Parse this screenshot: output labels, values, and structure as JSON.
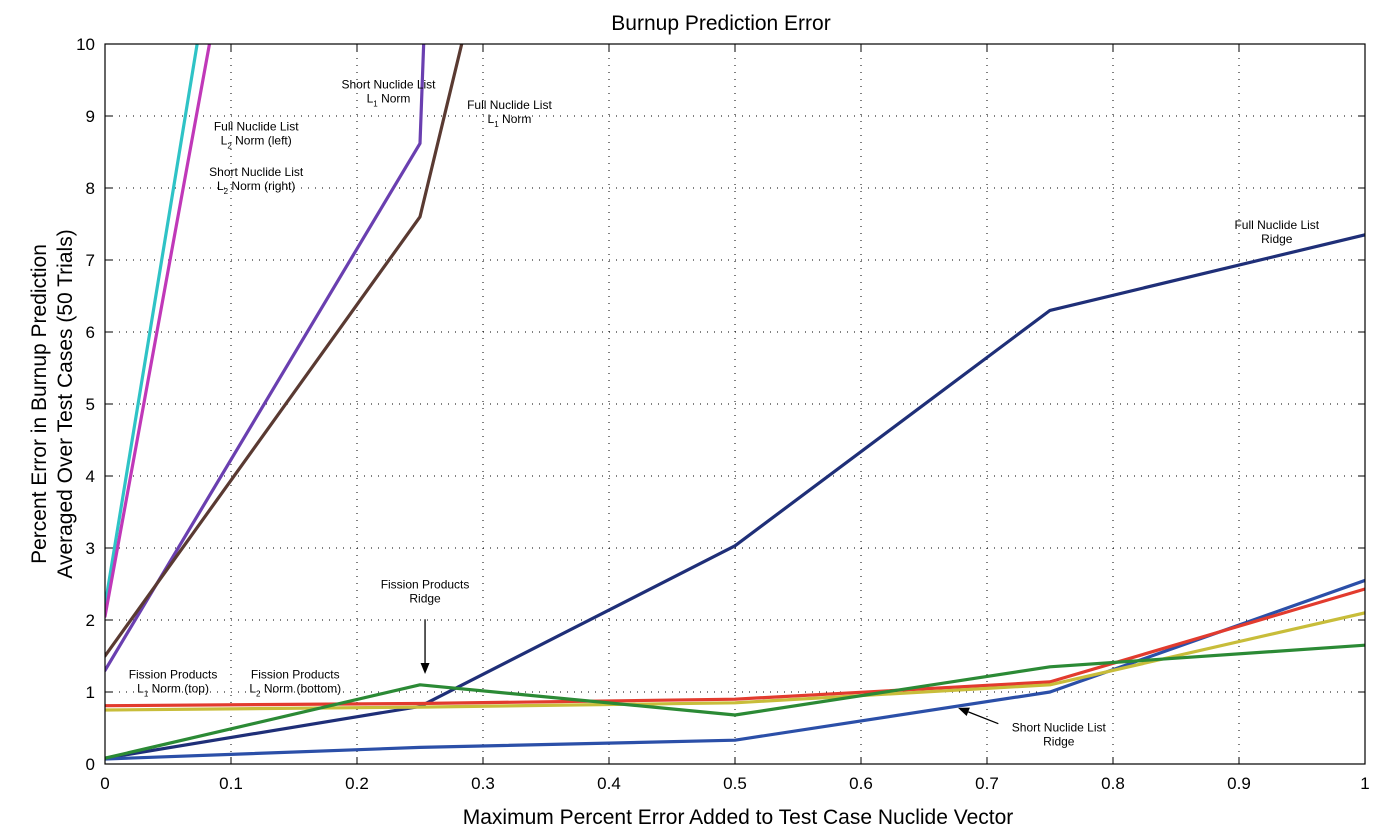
{
  "chart_data": {
    "type": "line",
    "title": "Burnup Prediction Error",
    "xlabel": "Maximum Percent Error Added to Test Case Nuclide Vector",
    "ylabel_lines": [
      "Percent Error in Burnup Prediction",
      "Averaged Over Test Cases (50 Trials)"
    ],
    "xlim": [
      0,
      1
    ],
    "ylim": [
      0,
      10
    ],
    "x_ticks": [
      0,
      0.1,
      0.2,
      0.3,
      0.4,
      0.5,
      0.6,
      0.7,
      0.8,
      0.9,
      1
    ],
    "x_tick_labels": [
      "0",
      "0.1",
      "0.2",
      "0.3",
      "0.4",
      "0.5",
      "0.6",
      "0.7",
      "0.8",
      "0.9",
      "1"
    ],
    "y_ticks": [
      0,
      1,
      2,
      3,
      4,
      5,
      6,
      7,
      8,
      9,
      10
    ],
    "y_tick_labels": [
      "0",
      "1",
      "2",
      "3",
      "4",
      "5",
      "6",
      "7",
      "8",
      "9",
      "10"
    ],
    "grid": true,
    "series": [
      {
        "color": "#2fc3c6",
        "x": [
          0,
          0.075
        ],
        "y": [
          2.2,
          10.2
        ]
      },
      {
        "color": "#c038b8",
        "x": [
          0,
          0.085
        ],
        "y": [
          2.05,
          10.2
        ]
      },
      {
        "color": "#6a3fb0",
        "x": [
          0,
          0.25,
          0.254
        ],
        "y": [
          1.3,
          8.62,
          10.5
        ]
      },
      {
        "color": "#5a3a32",
        "x": [
          0,
          0.25,
          0.29
        ],
        "y": [
          1.5,
          7.6,
          10.5
        ]
      },
      {
        "color": "#1f2f78",
        "x": [
          0,
          0.25,
          0.5,
          0.75,
          1
        ],
        "y": [
          0.08,
          0.8,
          3.03,
          6.3,
          7.35
        ]
      },
      {
        "color": "#2b4fa8",
        "x": [
          0,
          0.25,
          0.5,
          0.75,
          1
        ],
        "y": [
          0.07,
          0.23,
          0.33,
          1.0,
          2.55
        ]
      },
      {
        "color": "#e23b2e",
        "x": [
          0,
          0.25,
          0.5,
          0.75,
          1
        ],
        "y": [
          0.81,
          0.84,
          0.9,
          1.14,
          2.43
        ]
      },
      {
        "color": "#c8bd3a",
        "x": [
          0,
          0.25,
          0.5,
          0.75,
          1
        ],
        "y": [
          0.75,
          0.79,
          0.85,
          1.1,
          2.1
        ]
      },
      {
        "color": "#2b8a35",
        "x": [
          0,
          0.25,
          0.5,
          0.75,
          1
        ],
        "y": [
          0.08,
          1.1,
          0.68,
          1.35,
          1.65
        ]
      }
    ],
    "annotations": [
      {
        "lines": [
          "Short Nuclide List",
          "L1 Norm"
        ],
        "x": 0.225,
        "y": 9.38
      },
      {
        "lines": [
          "Full Nuclide List",
          "L1 Norm"
        ],
        "x": 0.321,
        "y": 9.1
      },
      {
        "lines": [
          "Full Nuclide List",
          "L2 Norm (left)"
        ],
        "x": 0.12,
        "y": 8.8
      },
      {
        "lines": [
          "Short Nuclide List",
          "L2 Norm (right)"
        ],
        "x": 0.12,
        "y": 8.17
      },
      {
        "lines": [
          "Full Nuclide List",
          "Ridge"
        ],
        "x": 0.93,
        "y": 7.43
      },
      {
        "lines": [
          "Fission Products",
          "Ridge"
        ],
        "x": 0.254,
        "y": 2.44
      },
      {
        "lines": [
          "Fission Products",
          "L1 Norm (top)"
        ],
        "x": 0.054,
        "y": 1.19
      },
      {
        "lines": [
          "Fission Products",
          "L2 Norm (bottom)"
        ],
        "x": 0.151,
        "y": 1.19
      },
      {
        "lines": [
          "Short Nuclide List",
          "Ridge"
        ],
        "x": 0.757,
        "y": 0.45
      }
    ],
    "arrows": [
      {
        "from": [
          0.254,
          2.01
        ],
        "to": [
          0.254,
          1.25
        ]
      },
      {
        "from": [
          0.709,
          0.56
        ],
        "to": [
          0.677,
          0.78
        ]
      }
    ]
  }
}
